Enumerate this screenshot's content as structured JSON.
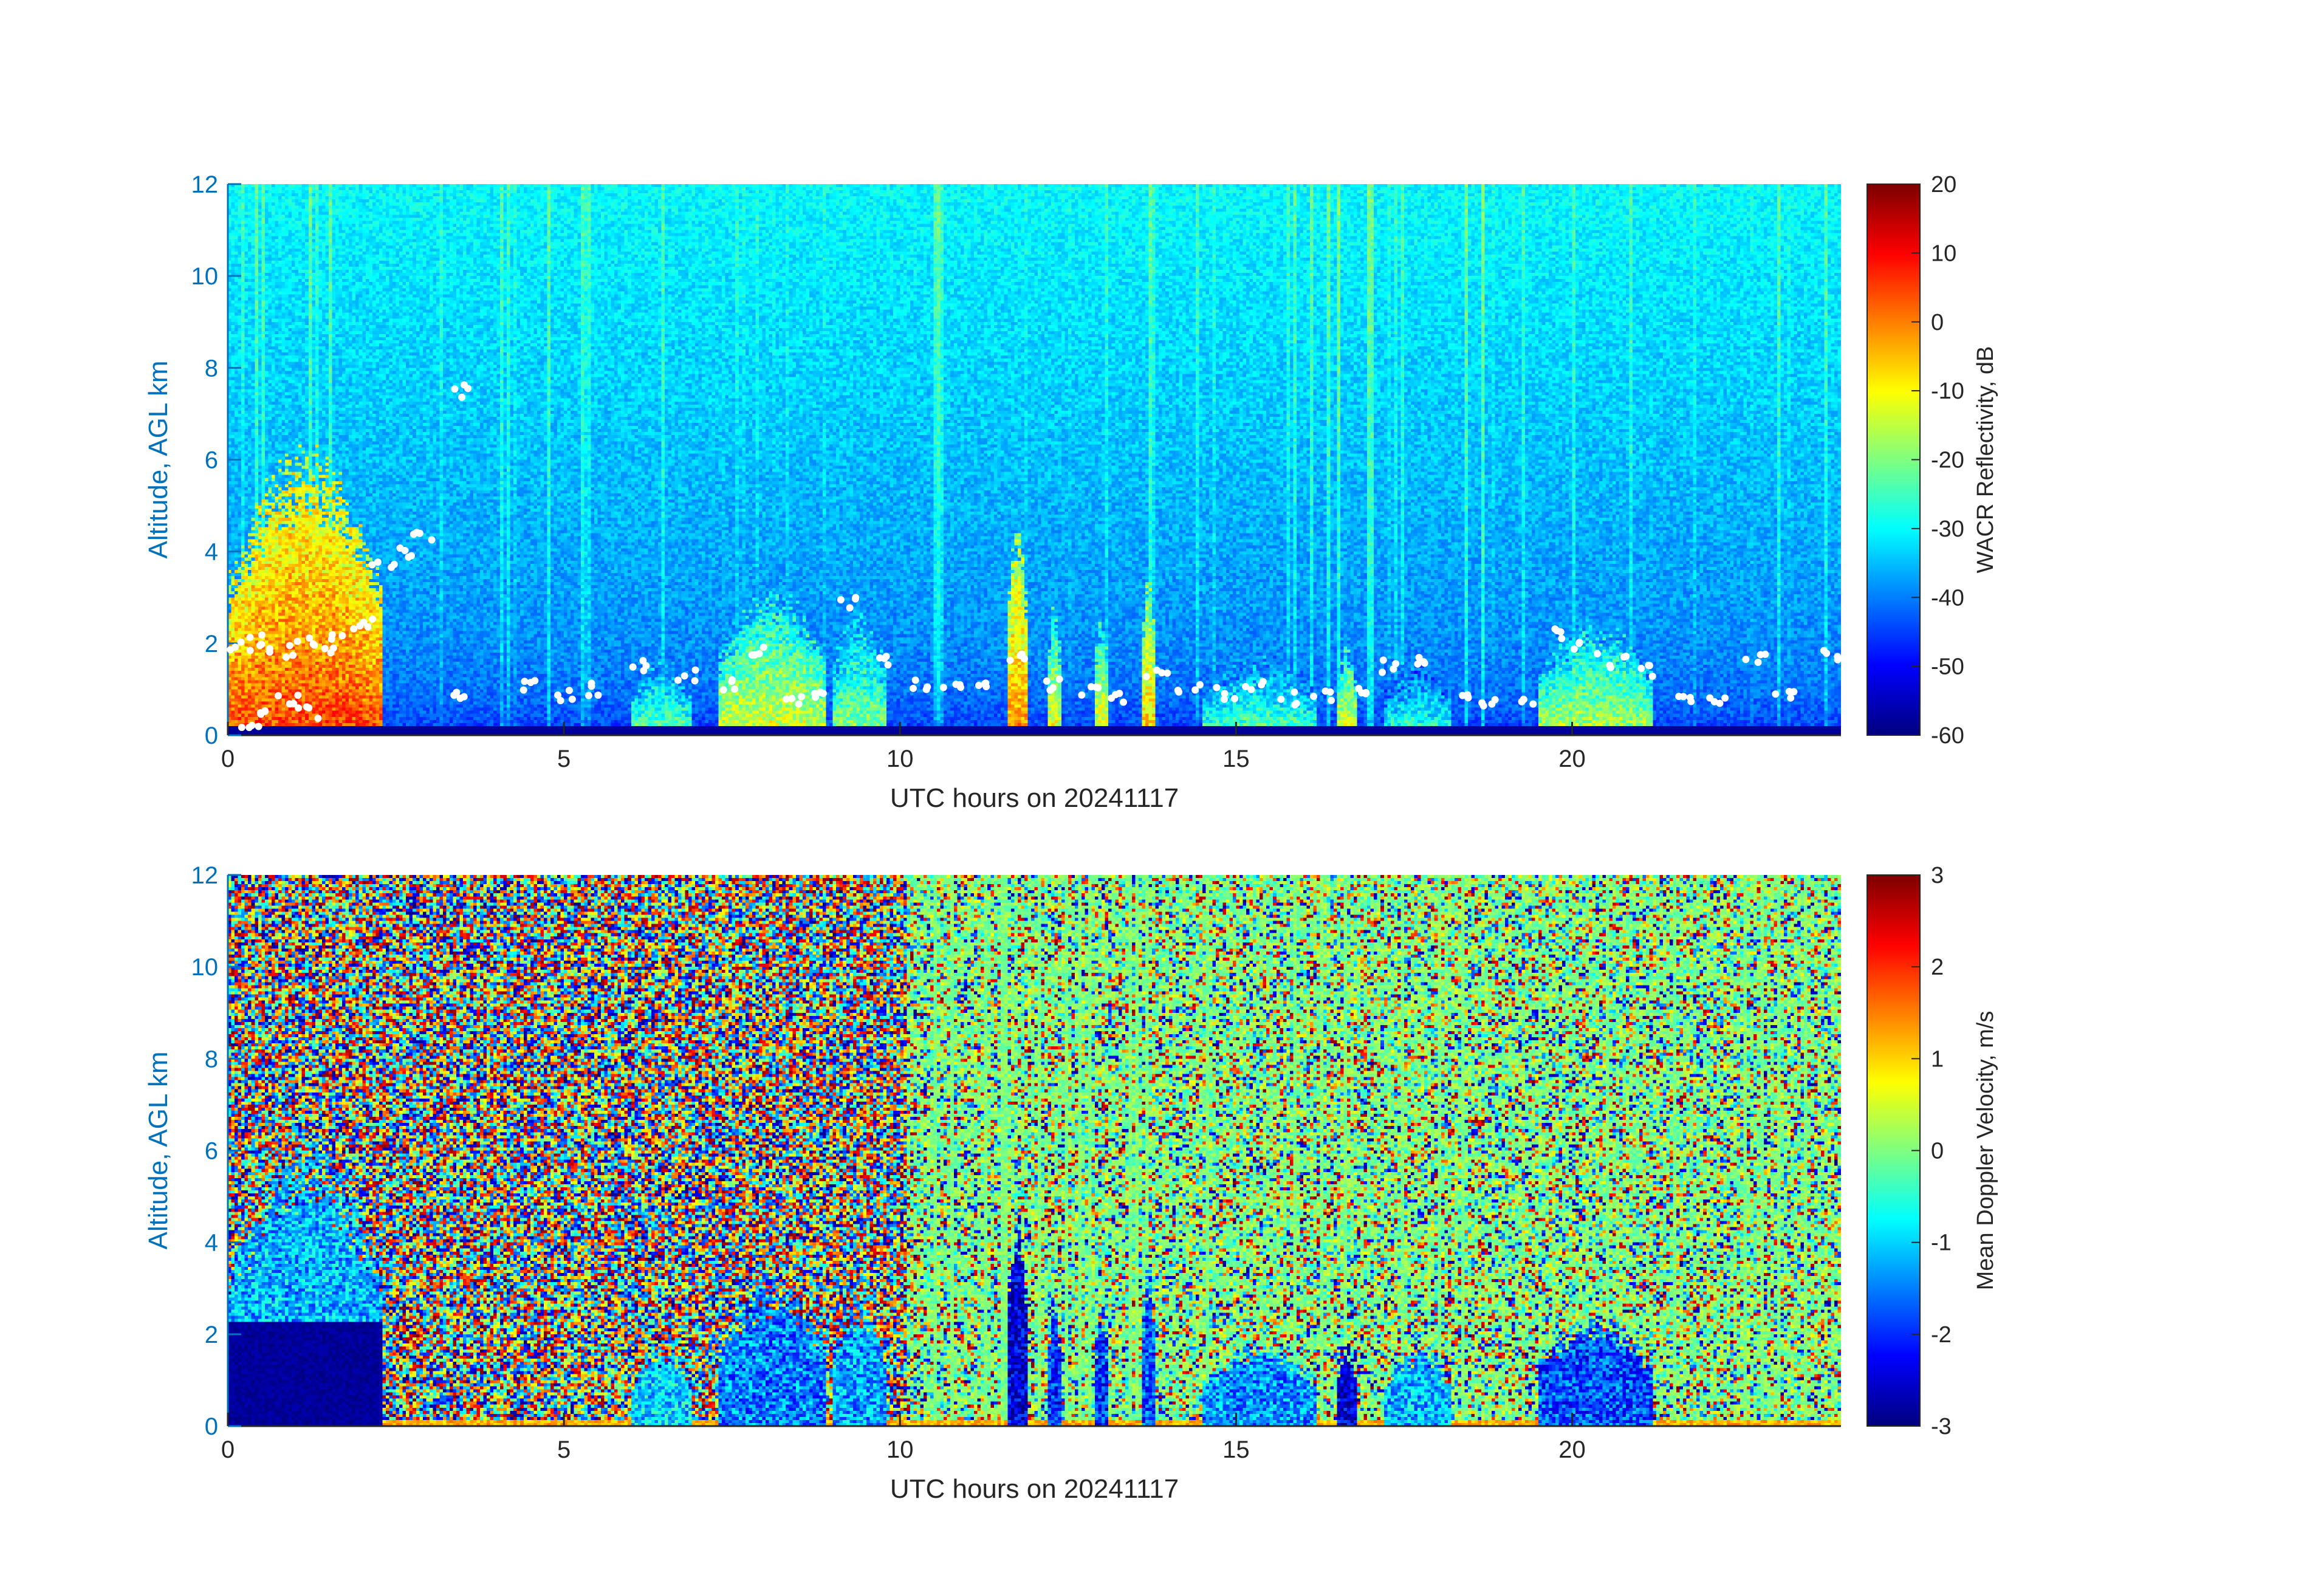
{
  "colors": {
    "axis_left": "#0072BD",
    "axis_text": "#262626",
    "colormap": "jet",
    "melting_layer_markers": "#ffffff"
  },
  "chart_data": [
    {
      "type": "heatmap",
      "title": "",
      "xlabel": "UTC hours on 20241117",
      "ylabel": "Altitude, AGL km",
      "xlim": [
        0,
        24
      ],
      "ylim": [
        0,
        12
      ],
      "xticks": [
        "0",
        "5",
        "10",
        "15",
        "20"
      ],
      "yticks": [
        "0",
        "2",
        "4",
        "6",
        "8",
        "10",
        "12"
      ],
      "colorbar": {
        "label": "WACR Reflectivity, dB",
        "range": [
          -60,
          20
        ],
        "ticks": [
          "20",
          "10",
          "0",
          "-10",
          "-20",
          "-30",
          "-40",
          "-50",
          "-60"
        ]
      },
      "background_value": -40,
      "near_surface_value": -58,
      "cloud_events": [
        {
          "start": 0.0,
          "end": 2.3,
          "top_km": 6.5,
          "value": 5
        },
        {
          "start": 6.0,
          "end": 6.9,
          "top_km": 1.8,
          "value": -20
        },
        {
          "start": 7.3,
          "end": 8.9,
          "top_km": 3.3,
          "value": -12
        },
        {
          "start": 9.0,
          "end": 9.8,
          "top_km": 2.9,
          "value": -18
        },
        {
          "start": 11.6,
          "end": 11.9,
          "top_km": 5.0,
          "value": 0
        },
        {
          "start": 12.2,
          "end": 12.4,
          "top_km": 3.0,
          "value": -10
        },
        {
          "start": 12.9,
          "end": 13.1,
          "top_km": 2.8,
          "value": -10
        },
        {
          "start": 13.6,
          "end": 13.8,
          "top_km": 4.0,
          "value": -5
        },
        {
          "start": 14.5,
          "end": 16.2,
          "top_km": 1.9,
          "value": -22
        },
        {
          "start": 16.5,
          "end": 16.8,
          "top_km": 2.0,
          "value": -10
        },
        {
          "start": 17.2,
          "end": 18.2,
          "top_km": 1.8,
          "value": -25
        },
        {
          "start": 19.5,
          "end": 21.2,
          "top_km": 2.6,
          "value": -15
        }
      ],
      "melting_layer_points": {
        "description_value": "cloud base / melting layer detections",
        "series": [
          {
            "hour": 0.2,
            "km": 1.9
          },
          {
            "hour": 0.5,
            "km": 2.1
          },
          {
            "hour": 0.8,
            "km": 1.8
          },
          {
            "hour": 1.1,
            "km": 2.0
          },
          {
            "hour": 1.4,
            "km": 1.9
          },
          {
            "hour": 1.7,
            "km": 2.2
          },
          {
            "hour": 2.0,
            "km": 2.5
          },
          {
            "hour": 2.3,
            "km": 3.8
          },
          {
            "hour": 2.6,
            "km": 4.0
          },
          {
            "hour": 2.9,
            "km": 4.3
          },
          {
            "hour": 3.5,
            "km": 7.5
          },
          {
            "hour": 0.3,
            "km": 0.3
          },
          {
            "hour": 0.6,
            "km": 0.6
          },
          {
            "hour": 0.9,
            "km": 0.8
          },
          {
            "hour": 1.2,
            "km": 0.5
          },
          {
            "hour": 3.5,
            "km": 0.8
          },
          {
            "hour": 4.5,
            "km": 1.1
          },
          {
            "hour": 5.0,
            "km": 0.9
          },
          {
            "hour": 5.5,
            "km": 1.0
          },
          {
            "hour": 6.2,
            "km": 1.5
          },
          {
            "hour": 6.8,
            "km": 1.3
          },
          {
            "hour": 7.4,
            "km": 1.1
          },
          {
            "hour": 7.9,
            "km": 1.8
          },
          {
            "hour": 8.4,
            "km": 0.8
          },
          {
            "hour": 8.9,
            "km": 0.9
          },
          {
            "hour": 9.3,
            "km": 2.9
          },
          {
            "hour": 9.8,
            "km": 1.6
          },
          {
            "hour": 10.3,
            "km": 1.1
          },
          {
            "hour": 10.8,
            "km": 1.0
          },
          {
            "hour": 11.3,
            "km": 1.2
          },
          {
            "hour": 11.8,
            "km": 1.7
          },
          {
            "hour": 12.3,
            "km": 1.1
          },
          {
            "hour": 12.8,
            "km": 1.0
          },
          {
            "hour": 13.3,
            "km": 0.8
          },
          {
            "hour": 13.8,
            "km": 1.4
          },
          {
            "hour": 14.3,
            "km": 1.0
          },
          {
            "hour": 14.8,
            "km": 0.9
          },
          {
            "hour": 15.3,
            "km": 1.1
          },
          {
            "hour": 15.8,
            "km": 0.8
          },
          {
            "hour": 16.3,
            "km": 0.9
          },
          {
            "hour": 16.8,
            "km": 1.0
          },
          {
            "hour": 17.3,
            "km": 1.5
          },
          {
            "hour": 17.8,
            "km": 1.6
          },
          {
            "hour": 18.3,
            "km": 0.8
          },
          {
            "hour": 18.8,
            "km": 0.7
          },
          {
            "hour": 19.3,
            "km": 0.8
          },
          {
            "hour": 19.7,
            "km": 2.2
          },
          {
            "hour": 20.2,
            "km": 1.9
          },
          {
            "hour": 20.7,
            "km": 1.6
          },
          {
            "hour": 21.2,
            "km": 1.4
          },
          {
            "hour": 21.7,
            "km": 0.8
          },
          {
            "hour": 22.2,
            "km": 0.7
          },
          {
            "hour": 22.7,
            "km": 1.7
          },
          {
            "hour": 23.2,
            "km": 0.9
          },
          {
            "hour": 23.8,
            "km": 1.7
          }
        ]
      }
    },
    {
      "type": "heatmap",
      "title": "",
      "xlabel": "UTC hours on 20241117",
      "ylabel": "Altitude, AGL km",
      "xlim": [
        0,
        24
      ],
      "ylim": [
        0,
        12
      ],
      "xticks": [
        "0",
        "5",
        "10",
        "15",
        "20"
      ],
      "yticks": [
        "0",
        "2",
        "4",
        "6",
        "8",
        "10",
        "12"
      ],
      "colorbar": {
        "label": "Mean Doppler Velocity, m/s",
        "range": [
          -3,
          3
        ],
        "ticks": [
          "3",
          "2",
          "1",
          "0",
          "-1",
          "-2",
          "-3"
        ]
      },
      "noise_transition_hour": 10.1,
      "cloud_events": [
        {
          "start": 0.0,
          "end": 2.3,
          "top_km": 6.5,
          "value": -1.2
        },
        {
          "start": 6.0,
          "end": 6.9,
          "top_km": 1.8,
          "value": -1.0
        },
        {
          "start": 7.3,
          "end": 8.9,
          "top_km": 3.3,
          "value": -1.5
        },
        {
          "start": 9.0,
          "end": 9.8,
          "top_km": 2.9,
          "value": -1.3
        },
        {
          "start": 11.6,
          "end": 11.9,
          "top_km": 5.0,
          "value": -2.5
        },
        {
          "start": 12.2,
          "end": 12.4,
          "top_km": 3.0,
          "value": -2.0
        },
        {
          "start": 12.9,
          "end": 13.1,
          "top_km": 2.8,
          "value": -2.0
        },
        {
          "start": 13.6,
          "end": 13.8,
          "top_km": 4.0,
          "value": -1.8
        },
        {
          "start": 14.5,
          "end": 16.2,
          "top_km": 1.9,
          "value": -1.4
        },
        {
          "start": 16.5,
          "end": 16.8,
          "top_km": 2.0,
          "value": -2.5
        },
        {
          "start": 17.2,
          "end": 18.2,
          "top_km": 1.8,
          "value": -1.2
        },
        {
          "start": 19.5,
          "end": 21.2,
          "top_km": 2.6,
          "value": -1.8
        }
      ]
    }
  ]
}
